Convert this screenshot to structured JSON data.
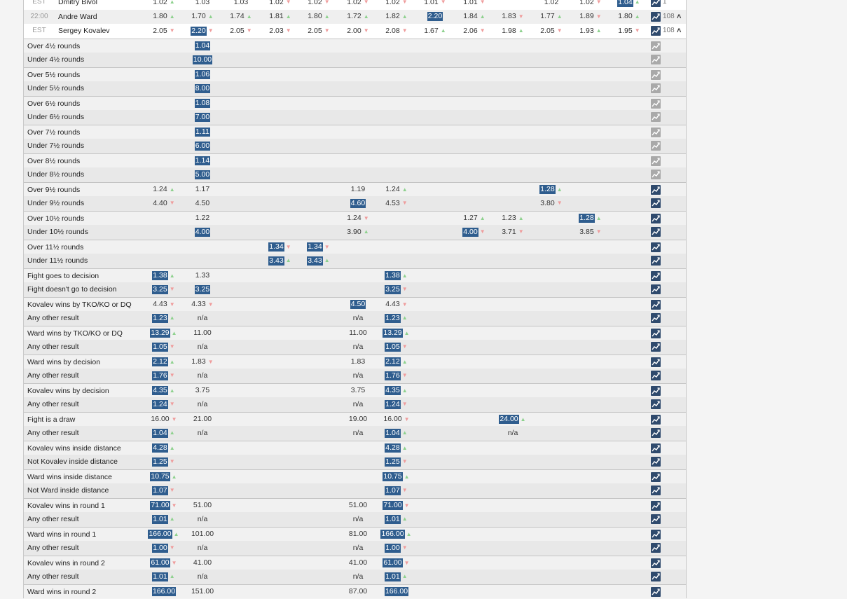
{
  "events": [
    {
      "time": "EST",
      "name": "Dmitry Bivol",
      "count": "1",
      "cells": [
        {
          "v": "1.02",
          "a": "up"
        },
        {
          "v": "1.03",
          "a": ""
        },
        {
          "v": "1.03",
          "a": ""
        },
        {
          "v": "1.02",
          "a": "down"
        },
        {
          "v": "1.02",
          "a": "down"
        },
        {
          "v": "1.02",
          "a": "down"
        },
        {
          "v": "1.02",
          "a": "down"
        },
        {
          "v": "1.01",
          "a": "down"
        },
        {
          "v": "1.01",
          "a": "down"
        },
        {
          "v": "",
          "a": ""
        },
        {
          "v": "1.02",
          "a": ""
        },
        {
          "v": "1.02",
          "a": "down"
        },
        {
          "v": "1.04",
          "a": "up",
          "hl": true
        }
      ]
    },
    {
      "time": "22:00",
      "name": "Andre Ward",
      "count": "108",
      "cells": [
        {
          "v": "1.80",
          "a": "up"
        },
        {
          "v": "1.70",
          "a": "up"
        },
        {
          "v": "1.74",
          "a": "up"
        },
        {
          "v": "1.81",
          "a": "up"
        },
        {
          "v": "1.80",
          "a": "up"
        },
        {
          "v": "1.72",
          "a": "up"
        },
        {
          "v": "1.82",
          "a": "up"
        },
        {
          "v": "2.20",
          "a": "",
          "hl": true
        },
        {
          "v": "1.84",
          "a": "up"
        },
        {
          "v": "1.83",
          "a": "down"
        },
        {
          "v": "1.77",
          "a": "up"
        },
        {
          "v": "1.89",
          "a": "down"
        },
        {
          "v": "1.80",
          "a": "up"
        }
      ]
    },
    {
      "time": "EST",
      "name": "Sergey Kovalev",
      "count": "108",
      "cells": [
        {
          "v": "2.05",
          "a": "down"
        },
        {
          "v": "2.20",
          "a": "down",
          "hl": true
        },
        {
          "v": "2.05",
          "a": "down"
        },
        {
          "v": "2.03",
          "a": "down"
        },
        {
          "v": "2.05",
          "a": "down"
        },
        {
          "v": "2.00",
          "a": "down"
        },
        {
          "v": "2.08",
          "a": "down"
        },
        {
          "v": "1.67",
          "a": "up"
        },
        {
          "v": "2.06",
          "a": "down"
        },
        {
          "v": "1.98",
          "a": "up"
        },
        {
          "v": "2.05",
          "a": "down"
        },
        {
          "v": "1.93",
          "a": "up"
        },
        {
          "v": "1.95",
          "a": "down"
        }
      ]
    }
  ],
  "markets": [
    {
      "label": "Over 4½ rounds",
      "dim": true,
      "c": {
        "1": [
          "1.04",
          "",
          1
        ]
      }
    },
    {
      "label": "Under 4½ rounds",
      "dim": true,
      "c": {
        "1": [
          "10.00",
          "",
          1
        ]
      }
    },
    {
      "label": "Over 5½ rounds",
      "dim": true,
      "c": {
        "1": [
          "1.06",
          "",
          1
        ]
      }
    },
    {
      "label": "Under 5½ rounds",
      "dim": true,
      "c": {
        "1": [
          "8.00",
          "",
          1
        ]
      }
    },
    {
      "label": "Over 6½ rounds",
      "dim": true,
      "c": {
        "1": [
          "1.08",
          "",
          1
        ]
      }
    },
    {
      "label": "Under 6½ rounds",
      "dim": true,
      "c": {
        "1": [
          "7.00",
          "",
          1
        ]
      }
    },
    {
      "label": "Over 7½ rounds",
      "dim": true,
      "c": {
        "1": [
          "1.11",
          "",
          1
        ]
      }
    },
    {
      "label": "Under 7½ rounds",
      "dim": true,
      "c": {
        "1": [
          "6.00",
          "",
          1
        ]
      }
    },
    {
      "label": "Over 8½ rounds",
      "dim": true,
      "c": {
        "1": [
          "1.14",
          "",
          1
        ]
      }
    },
    {
      "label": "Under 8½ rounds",
      "dim": true,
      "c": {
        "1": [
          "5.00",
          "",
          1
        ]
      }
    },
    {
      "label": "Over 9½ rounds",
      "c": {
        "0": [
          "1.24",
          "up",
          0
        ],
        "1": [
          "1.17",
          "",
          0
        ],
        "5": [
          "1.19",
          "",
          0
        ],
        "6": [
          "1.24",
          "up",
          0
        ],
        "10": [
          "1.28",
          "up",
          1
        ]
      }
    },
    {
      "label": "Under 9½ rounds",
      "c": {
        "0": [
          "4.40",
          "down",
          0
        ],
        "1": [
          "4.50",
          "",
          0
        ],
        "5": [
          "4.60",
          "",
          1
        ],
        "6": [
          "4.53",
          "down",
          0
        ],
        "10": [
          "3.80",
          "down",
          0
        ]
      }
    },
    {
      "label": "Over 10½ rounds",
      "c": {
        "1": [
          "1.22",
          "",
          0
        ],
        "5": [
          "1.24",
          "down",
          0
        ],
        "8": [
          "1.27",
          "up",
          0
        ],
        "9": [
          "1.23",
          "up",
          0
        ],
        "11": [
          "1.28",
          "up",
          1
        ]
      }
    },
    {
      "label": "Under 10½ rounds",
      "c": {
        "1": [
          "4.00",
          "",
          1
        ],
        "5": [
          "3.90",
          "up",
          0
        ],
        "8": [
          "4.00",
          "down",
          1
        ],
        "9": [
          "3.71",
          "down",
          0
        ],
        "11": [
          "3.85",
          "down",
          0
        ]
      }
    },
    {
      "label": "Over 11½ rounds",
      "c": {
        "3": [
          "1.34",
          "down",
          1
        ],
        "4": [
          "1.34",
          "down",
          1
        ]
      }
    },
    {
      "label": "Under 11½ rounds",
      "c": {
        "3": [
          "3.43",
          "up",
          1
        ],
        "4": [
          "3.43",
          "up",
          1
        ]
      }
    },
    {
      "label": "Fight goes to decision",
      "c": {
        "0": [
          "1.38",
          "up",
          1
        ],
        "1": [
          "1.33",
          "",
          0
        ],
        "6": [
          "1.38",
          "up",
          1
        ]
      }
    },
    {
      "label": "Fight doesn't go to decision",
      "c": {
        "0": [
          "3.25",
          "down",
          1
        ],
        "1": [
          "3.25",
          "",
          1
        ],
        "6": [
          "3.25",
          "down",
          1
        ]
      }
    },
    {
      "label": "Kovalev wins by TKO/KO or DQ",
      "c": {
        "0": [
          "4.43",
          "down",
          0
        ],
        "1": [
          "4.33",
          "down",
          0
        ],
        "5": [
          "4.50",
          "",
          1
        ],
        "6": [
          "4.43",
          "down",
          0
        ]
      }
    },
    {
      "label": "Any other result",
      "c": {
        "0": [
          "1.23",
          "up",
          1
        ],
        "1": [
          "n/a",
          "",
          0
        ],
        "5": [
          "n/a",
          "",
          0
        ],
        "6": [
          "1.23",
          "up",
          1
        ]
      }
    },
    {
      "label": "Ward wins by TKO/KO or DQ",
      "c": {
        "0": [
          "13.29",
          "up",
          1
        ],
        "1": [
          "11.00",
          "",
          0
        ],
        "5": [
          "11.00",
          "",
          0
        ],
        "6": [
          "13.29",
          "up",
          1
        ]
      }
    },
    {
      "label": "Any other result",
      "c": {
        "0": [
          "1.05",
          "down",
          1
        ],
        "1": [
          "n/a",
          "",
          0
        ],
        "5": [
          "n/a",
          "",
          0
        ],
        "6": [
          "1.05",
          "down",
          1
        ]
      }
    },
    {
      "label": "Ward wins by decision",
      "c": {
        "0": [
          "2.12",
          "up",
          1
        ],
        "1": [
          "1.83",
          "down",
          0
        ],
        "5": [
          "1.83",
          "",
          0
        ],
        "6": [
          "2.12",
          "up",
          1
        ]
      }
    },
    {
      "label": "Any other result",
      "c": {
        "0": [
          "1.76",
          "down",
          1
        ],
        "1": [
          "n/a",
          "",
          0
        ],
        "5": [
          "n/a",
          "",
          0
        ],
        "6": [
          "1.76",
          "down",
          1
        ]
      }
    },
    {
      "label": "Kovalev wins by decision",
      "c": {
        "0": [
          "4.35",
          "up",
          1
        ],
        "1": [
          "3.75",
          "",
          0
        ],
        "5": [
          "3.75",
          "",
          0
        ],
        "6": [
          "4.35",
          "up",
          1
        ]
      }
    },
    {
      "label": "Any other result",
      "c": {
        "0": [
          "1.24",
          "down",
          1
        ],
        "1": [
          "n/a",
          "",
          0
        ],
        "5": [
          "n/a",
          "",
          0
        ],
        "6": [
          "1.24",
          "down",
          1
        ]
      }
    },
    {
      "label": "Fight is a draw",
      "c": {
        "0": [
          "16.00",
          "down",
          0
        ],
        "1": [
          "21.00",
          "",
          0
        ],
        "5": [
          "19.00",
          "",
          0
        ],
        "6": [
          "16.00",
          "down",
          0
        ],
        "9": [
          "24.00",
          "up",
          1
        ]
      }
    },
    {
      "label": "Any other result",
      "c": {
        "0": [
          "1.04",
          "up",
          1
        ],
        "1": [
          "n/a",
          "",
          0
        ],
        "5": [
          "n/a",
          "",
          0
        ],
        "6": [
          "1.04",
          "up",
          1
        ],
        "9": [
          "n/a",
          "",
          0
        ]
      }
    },
    {
      "label": "Kovalev wins inside distance",
      "c": {
        "0": [
          "4.28",
          "up",
          1
        ],
        "6": [
          "4.28",
          "up",
          1
        ]
      }
    },
    {
      "label": "Not Kovalev inside distance",
      "c": {
        "0": [
          "1.25",
          "down",
          1
        ],
        "6": [
          "1.25",
          "down",
          1
        ]
      }
    },
    {
      "label": "Ward wins inside distance",
      "c": {
        "0": [
          "10.75",
          "up",
          1
        ],
        "6": [
          "10.75",
          "up",
          1
        ]
      }
    },
    {
      "label": "Not Ward inside distance",
      "c": {
        "0": [
          "1.07",
          "down",
          1
        ],
        "6": [
          "1.07",
          "down",
          1
        ]
      }
    },
    {
      "label": "Kovalev wins in round 1",
      "c": {
        "0": [
          "71.00",
          "down",
          1
        ],
        "1": [
          "51.00",
          "",
          0
        ],
        "5": [
          "51.00",
          "",
          0
        ],
        "6": [
          "71.00",
          "down",
          1
        ]
      }
    },
    {
      "label": "Any other result",
      "c": {
        "0": [
          "1.01",
          "up",
          1
        ],
        "1": [
          "n/a",
          "",
          0
        ],
        "5": [
          "n/a",
          "",
          0
        ],
        "6": [
          "1.01",
          "up",
          1
        ]
      }
    },
    {
      "label": "Ward wins in round 1",
      "c": {
        "0": [
          "166.00",
          "up",
          1
        ],
        "1": [
          "101.00",
          "",
          0
        ],
        "5": [
          "81.00",
          "",
          0
        ],
        "6": [
          "166.00",
          "up",
          1
        ]
      }
    },
    {
      "label": "Any other result",
      "c": {
        "0": [
          "1.00",
          "down",
          1
        ],
        "1": [
          "n/a",
          "",
          0
        ],
        "5": [
          "n/a",
          "",
          0
        ],
        "6": [
          "1.00",
          "down",
          1
        ]
      }
    },
    {
      "label": "Kovalev wins in round 2",
      "c": {
        "0": [
          "61.00",
          "down",
          1
        ],
        "1": [
          "41.00",
          "",
          0
        ],
        "5": [
          "41.00",
          "",
          0
        ],
        "6": [
          "61.00",
          "down",
          1
        ]
      }
    },
    {
      "label": "Any other result",
      "c": {
        "0": [
          "1.01",
          "up",
          1
        ],
        "1": [
          "n/a",
          "",
          0
        ],
        "5": [
          "n/a",
          "",
          0
        ],
        "6": [
          "1.01",
          "up",
          1
        ]
      }
    },
    {
      "label": "Ward wins in round 2",
      "c": {
        "0": [
          "166.00",
          "",
          1
        ],
        "1": [
          "151.00",
          "",
          0
        ],
        "5": [
          "87.00",
          "",
          0
        ],
        "6": [
          "166.00",
          "",
          1
        ]
      }
    }
  ],
  "icons": {
    "chart": "line-chart-icon",
    "caret": "chevron-up-icon",
    "arrow_up": "▲",
    "arrow_down": "▼"
  },
  "colors": {
    "highlight": "#2f5d8e",
    "up": "#8ed18e",
    "down": "#ef9c9c",
    "chart_icon": "#2f4a6d",
    "chart_icon_dim": "#a9a9a9"
  }
}
